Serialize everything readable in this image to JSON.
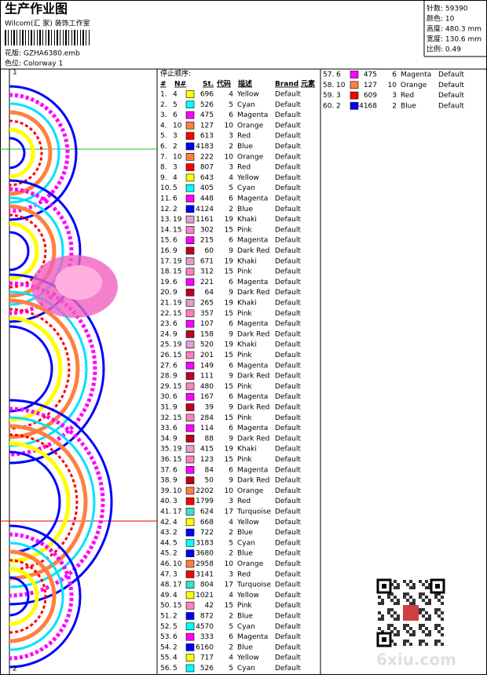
{
  "header": {
    "title": "生产作业图",
    "studio": "Wilcom(汇 家) 装饰工作室",
    "design_file": "花版: GZHA6380.emb",
    "colorway": "色位: Colorway 1"
  },
  "summary": [
    "针数: 59390",
    "颜色: 10",
    "高度: 480.3 mm",
    "宽度: 130.6 mm",
    "比例: 0.49"
  ],
  "margin_marks": [
    "1",
    "2"
  ],
  "table": {
    "caption": "停止顺序:",
    "columns": [
      "#",
      "N#",
      "St.",
      "代码",
      "描述",
      "Brand",
      "元素"
    ],
    "colors": {
      "Yellow": "#ffff00",
      "Cyan": "#00ffff",
      "Magenta": "#ff00ff",
      "Orange": "#ff8040",
      "Red": "#ff0000",
      "Blue": "#0000ff",
      "Khaki": "#e0a0d0",
      "Pink": "#ff80c0",
      "Dark Red": "#c00020",
      "Turquoise": "#40e0d0"
    },
    "rows": [
      [
        "1.",
        "4",
        "696",
        "4",
        "Yellow",
        "Default"
      ],
      [
        "2.",
        "5",
        "526",
        "5",
        "Cyan",
        "Default"
      ],
      [
        "3.",
        "6",
        "475",
        "6",
        "Magenta",
        "Default"
      ],
      [
        "4.",
        "10",
        "127",
        "10",
        "Orange",
        "Default"
      ],
      [
        "5.",
        "3",
        "613",
        "3",
        "Red",
        "Default"
      ],
      [
        "6.",
        "2",
        "4183",
        "2",
        "Blue",
        "Default"
      ],
      [
        "7.",
        "10",
        "222",
        "10",
        "Orange",
        "Default"
      ],
      [
        "8.",
        "3",
        "807",
        "3",
        "Red",
        "Default"
      ],
      [
        "9.",
        "4",
        "643",
        "4",
        "Yellow",
        "Default"
      ],
      [
        "10.",
        "5",
        "405",
        "5",
        "Cyan",
        "Default"
      ],
      [
        "11.",
        "6",
        "448",
        "6",
        "Magenta",
        "Default"
      ],
      [
        "12.",
        "2",
        "4124",
        "2",
        "Blue",
        "Default"
      ],
      [
        "13.",
        "19",
        "1161",
        "19",
        "Khaki",
        "Default"
      ],
      [
        "14.",
        "15",
        "302",
        "15",
        "Pink",
        "Default"
      ],
      [
        "15.",
        "6",
        "215",
        "6",
        "Magenta",
        "Default"
      ],
      [
        "16.",
        "9",
        "60",
        "9",
        "Dark Red",
        "Default"
      ],
      [
        "17.",
        "19",
        "671",
        "19",
        "Khaki",
        "Default"
      ],
      [
        "18.",
        "15",
        "312",
        "15",
        "Pink",
        "Default"
      ],
      [
        "19.",
        "6",
        "221",
        "6",
        "Magenta",
        "Default"
      ],
      [
        "20.",
        "9",
        "64",
        "9",
        "Dark Red",
        "Default"
      ],
      [
        "21.",
        "19",
        "265",
        "19",
        "Khaki",
        "Default"
      ],
      [
        "22.",
        "15",
        "357",
        "15",
        "Pink",
        "Default"
      ],
      [
        "23.",
        "6",
        "107",
        "6",
        "Magenta",
        "Default"
      ],
      [
        "24.",
        "9",
        "158",
        "9",
        "Dark Red",
        "Default"
      ],
      [
        "25.",
        "19",
        "520",
        "19",
        "Khaki",
        "Default"
      ],
      [
        "26.",
        "15",
        "201",
        "15",
        "Pink",
        "Default"
      ],
      [
        "27.",
        "6",
        "149",
        "6",
        "Magenta",
        "Default"
      ],
      [
        "28.",
        "9",
        "111",
        "9",
        "Dark Red",
        "Default"
      ],
      [
        "29.",
        "15",
        "480",
        "15",
        "Pink",
        "Default"
      ],
      [
        "30.",
        "6",
        "167",
        "6",
        "Magenta",
        "Default"
      ],
      [
        "31.",
        "9",
        "39",
        "9",
        "Dark Red",
        "Default"
      ],
      [
        "32.",
        "15",
        "284",
        "15",
        "Pink",
        "Default"
      ],
      [
        "33.",
        "6",
        "114",
        "6",
        "Magenta",
        "Default"
      ],
      [
        "34.",
        "9",
        "88",
        "9",
        "Dark Red",
        "Default"
      ],
      [
        "35.",
        "19",
        "415",
        "19",
        "Khaki",
        "Default"
      ],
      [
        "36.",
        "15",
        "123",
        "15",
        "Pink",
        "Default"
      ],
      [
        "37.",
        "6",
        "84",
        "6",
        "Magenta",
        "Default"
      ],
      [
        "38.",
        "9",
        "50",
        "9",
        "Dark Red",
        "Default"
      ],
      [
        "39.",
        "10",
        "2202",
        "10",
        "Orange",
        "Default"
      ],
      [
        "40.",
        "3",
        "1799",
        "3",
        "Red",
        "Default"
      ],
      [
        "41.",
        "17",
        "624",
        "17",
        "Turquoise",
        "Default"
      ],
      [
        "42.",
        "4",
        "668",
        "4",
        "Yellow",
        "Default"
      ],
      [
        "43.",
        "2",
        "722",
        "2",
        "Blue",
        "Default"
      ],
      [
        "44.",
        "5",
        "3183",
        "5",
        "Cyan",
        "Default"
      ],
      [
        "45.",
        "2",
        "3680",
        "2",
        "Blue",
        "Default"
      ],
      [
        "46.",
        "10",
        "2958",
        "10",
        "Orange",
        "Default"
      ],
      [
        "47.",
        "3",
        "3141",
        "3",
        "Red",
        "Default"
      ],
      [
        "48.",
        "17",
        "804",
        "17",
        "Turquoise",
        "Default"
      ],
      [
        "49.",
        "4",
        "1021",
        "4",
        "Yellow",
        "Default"
      ],
      [
        "50.",
        "15",
        "42",
        "15",
        "Pink",
        "Default"
      ],
      [
        "51.",
        "2",
        "872",
        "2",
        "Blue",
        "Default"
      ],
      [
        "52.",
        "5",
        "4570",
        "5",
        "Cyan",
        "Default"
      ],
      [
        "53.",
        "6",
        "333",
        "6",
        "Magenta",
        "Default"
      ],
      [
        "54.",
        "2",
        "6160",
        "2",
        "Blue",
        "Default"
      ],
      [
        "55.",
        "4",
        "717",
        "4",
        "Yellow",
        "Default"
      ],
      [
        "56.",
        "5",
        "526",
        "5",
        "Cyan",
        "Default"
      ],
      [
        "57.",
        "6",
        "475",
        "6",
        "Magenta",
        "Default"
      ],
      [
        "58.",
        "10",
        "127",
        "10",
        "Orange",
        "Default"
      ],
      [
        "59.",
        "3",
        "609",
        "3",
        "Red",
        "Default"
      ],
      [
        "60.",
        "2",
        "4168",
        "2",
        "Blue",
        "Default"
      ]
    ]
  },
  "watermark": "6xiu.com"
}
